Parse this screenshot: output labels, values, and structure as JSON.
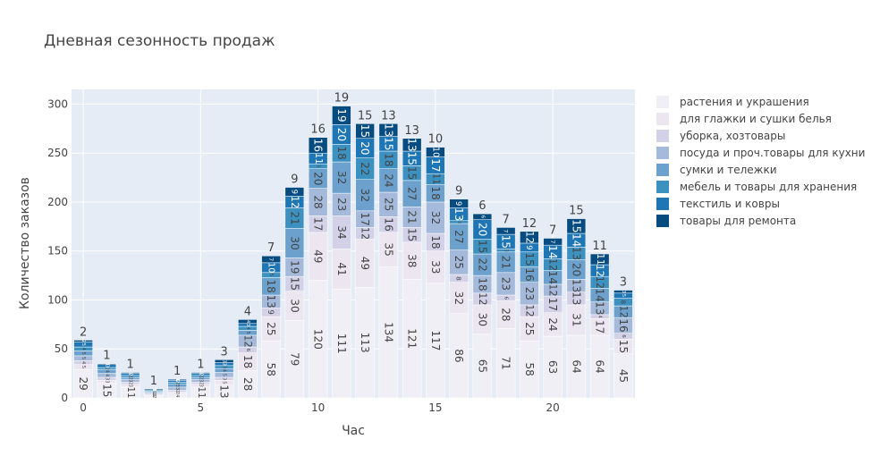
{
  "chart_data": {
    "type": "bar",
    "stacked": true,
    "title": "Дневная сезонность продаж",
    "xlabel": "Час",
    "ylabel": "Количество заказов",
    "x": [
      0,
      1,
      2,
      3,
      4,
      5,
      6,
      7,
      8,
      9,
      10,
      11,
      12,
      13,
      14,
      15,
      16,
      17,
      18,
      19,
      20,
      21,
      22,
      23
    ],
    "xticks": [
      0,
      5,
      10,
      15,
      20
    ],
    "xtick_labels": [
      "0",
      "5",
      "10",
      "15",
      "20"
    ],
    "ylim": [
      0,
      315
    ],
    "yticks": [
      0,
      50,
      100,
      150,
      200,
      250,
      300
    ],
    "ytick_labels": [
      "0",
      "50",
      "100",
      "150",
      "200",
      "250",
      "300"
    ],
    "grid": true,
    "legend_position": "right",
    "series": [
      {
        "name": "растения и украшения",
        "color": "#f0eff6",
        "values": [
          29,
          15,
          11,
          2,
          4,
          11,
          13,
          28,
          58,
          79,
          120,
          111,
          113,
          134,
          121,
          117,
          86,
          65,
          71,
          58,
          63,
          64,
          64,
          45
        ]
      },
      {
        "name": "для глажки и сушки белья",
        "color": "#ece6f1",
        "values": [
          5,
          3,
          3,
          1,
          2,
          3,
          5,
          18,
          25,
          30,
          49,
          41,
          49,
          35,
          38,
          33,
          32,
          30,
          28,
          25,
          24,
          31,
          17,
          15
        ]
      },
      {
        "name": "уборка, хозтовары",
        "color": "#d3d1e7",
        "values": [
          4,
          3,
          2,
          1,
          2,
          2,
          3,
          6,
          9,
          15,
          17,
          34,
          12,
          16,
          15,
          18,
          8,
          12,
          6,
          12,
          17,
          13,
          4,
          6
        ]
      },
      {
        "name": "посуда и проч.товары для кухни",
        "color": "#a5badb",
        "values": [
          5,
          4,
          3,
          1,
          3,
          3,
          5,
          12,
          13,
          19,
          28,
          23,
          17,
          25,
          21,
          32,
          25,
          18,
          23,
          23,
          12,
          13,
          13,
          16
        ]
      },
      {
        "name": "сумки и тележки",
        "color": "#6ba1cc",
        "values": [
          5,
          4,
          2,
          1,
          3,
          2,
          4,
          5,
          18,
          30,
          20,
          32,
          32,
          24,
          27,
          18,
          27,
          22,
          21,
          16,
          14,
          20,
          14,
          12
        ]
      },
      {
        "name": "мебель и товары для хранения",
        "color": "#3c91c0",
        "values": [
          4,
          2,
          2,
          1,
          2,
          2,
          3,
          4,
          5,
          21,
          5,
          18,
          22,
          18,
          15,
          11,
          3,
          15,
          3,
          15,
          12,
          13,
          12,
          8
        ]
      },
      {
        "name": "текстиль и ковры",
        "color": "#1f76b4",
        "values": [
          5,
          3,
          2,
          1,
          2,
          2,
          3,
          3,
          10,
          12,
          11,
          20,
          20,
          15,
          15,
          17,
          13,
          20,
          15,
          9,
          14,
          14,
          12,
          5
        ]
      },
      {
        "name": "товары для ремонта",
        "color": "#064c80",
        "values": [
          2,
          1,
          1,
          1,
          1,
          1,
          3,
          4,
          7,
          9,
          16,
          19,
          15,
          13,
          13,
          10,
          9,
          6,
          7,
          12,
          7,
          15,
          11,
          3
        ]
      }
    ]
  }
}
